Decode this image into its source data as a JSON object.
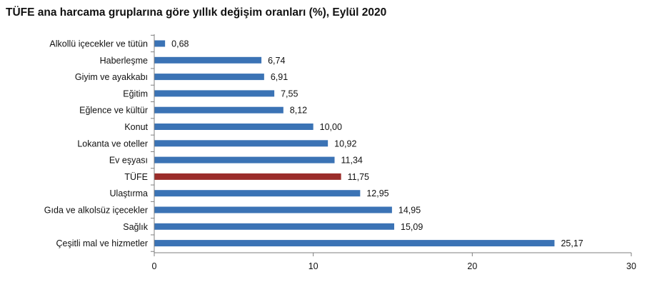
{
  "chart_data": {
    "type": "bar",
    "orientation": "horizontal",
    "title": "TÜFE ana harcama gruplarına göre yıllık değişim oranları (%), Eylül 2020",
    "categories": [
      "Alkollü içecekler ve tütün",
      "Haberleşme",
      "Giyim ve ayakkabı",
      "Eğitim",
      "Eğlence ve kültür",
      "Konut",
      "Lokanta ve oteller",
      "Ev eşyası",
      "TÜFE",
      "Ulaştırma",
      "Gıda ve alkolsüz içecekler",
      "Sağlık",
      "Çeşitli mal ve hizmetler"
    ],
    "values": [
      0.68,
      6.74,
      6.91,
      7.55,
      8.12,
      10.0,
      10.92,
      11.34,
      11.75,
      12.95,
      14.95,
      15.09,
      25.17
    ],
    "value_labels": [
      "0,68",
      "6,74",
      "6,91",
      "7,55",
      "8,12",
      "10,00",
      "10,92",
      "11,34",
      "11,75",
      "12,95",
      "14,95",
      "15,09",
      "25,17"
    ],
    "highlight_category": "TÜFE",
    "colors": {
      "bar": "#3b73b5",
      "highlight": "#9b2d2a",
      "axis": "#7f7f7f"
    },
    "xlim": [
      0,
      30
    ],
    "xticks": [
      0,
      10,
      20,
      30
    ],
    "xtick_labels": [
      "0",
      "10",
      "20",
      "30"
    ],
    "grid": false,
    "legend": false
  }
}
